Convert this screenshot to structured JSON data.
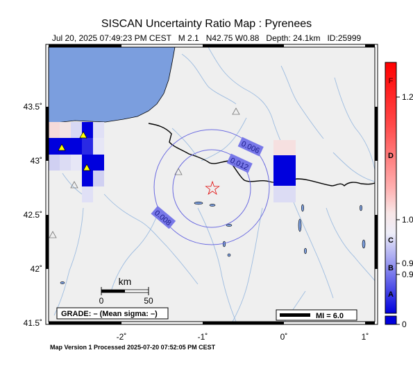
{
  "title": "SISCAN Uncertainty Ratio Map : Pyrenees",
  "subtitle": "Jul 20, 2025 07:49:23 PM CEST   M 2.1   N42.75 W0.88   Depth: 24.1km   ID:25999",
  "footer": "Map Version 1 Processed 2025-07-20 07:52:05 PM CEST",
  "axes": {
    "x_ticks": [
      "-2˚",
      "-1˚",
      "0˚",
      "1˚"
    ],
    "y_ticks": [
      "43.5˚",
      "43˚",
      "42.5˚",
      "42˚",
      "41.5˚"
    ]
  },
  "contours": [
    "0.006",
    "0.012",
    "0.008"
  ],
  "scale_bar": {
    "unit": "km",
    "zero": "0",
    "max": "50"
  },
  "grade_box": "GRADE: – (Mean sigma: –)",
  "mi_legend": "MI = 6.0",
  "colorbar": {
    "grades": [
      "F",
      "D",
      "C",
      "B",
      "A"
    ],
    "values": [
      "1.2",
      "1.0",
      "0.9",
      "0.9",
      "0"
    ],
    "top_color": "#ff0000",
    "mid_color": "#f0f0f0",
    "bottom_color": "#0000dd"
  },
  "colors": {
    "sea": "#7b9ede",
    "land": "#efefef",
    "river": "#9dbce0",
    "border": "#000000",
    "contour": "#6a6ae0",
    "epicenter": "#e00000",
    "station": "#ffff00"
  },
  "epicenter": {
    "lat": 42.75,
    "lon": -0.88,
    "symbol": "☆"
  }
}
